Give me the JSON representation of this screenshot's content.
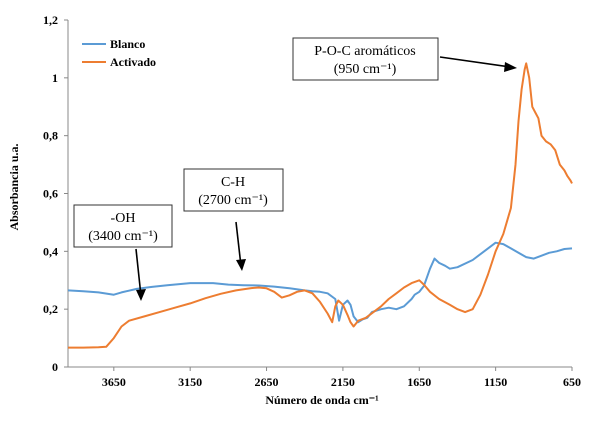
{
  "chart_data": {
    "type": "line",
    "xlabel": "Número de onda cm⁻¹",
    "ylabel": "Absorbancia u.a.",
    "xlim": [
      3950,
      650
    ],
    "ylim": [
      0,
      1.2
    ],
    "x_reversed": true,
    "x_ticks": [
      {
        "value": 3650,
        "label": "3650"
      },
      {
        "value": 3150,
        "label": "3150"
      },
      {
        "value": 2650,
        "label": "2650"
      },
      {
        "value": 2150,
        "label": "2150"
      },
      {
        "value": 1650,
        "label": "1650"
      },
      {
        "value": 1150,
        "label": "1150"
      },
      {
        "value": 650,
        "label": "650"
      }
    ],
    "y_ticks": [
      {
        "value": 0,
        "label": "0"
      },
      {
        "value": 0.2,
        "label": "0,2"
      },
      {
        "value": 0.4,
        "label": "0,4"
      },
      {
        "value": 0.6,
        "label": "0,6"
      },
      {
        "value": 0.8,
        "label": "0,8"
      },
      {
        "value": 1.0,
        "label": "1"
      },
      {
        "value": 1.2,
        "label": "1,2"
      }
    ],
    "grid": false,
    "legend_position": "top-left",
    "series": [
      {
        "name": "Blanco",
        "color": "#5b9bd5",
        "points": [
          [
            3950,
            0.265
          ],
          [
            3850,
            0.262
          ],
          [
            3750,
            0.258
          ],
          [
            3650,
            0.25
          ],
          [
            3600,
            0.258
          ],
          [
            3500,
            0.27
          ],
          [
            3400,
            0.277
          ],
          [
            3300,
            0.283
          ],
          [
            3150,
            0.29
          ],
          [
            3000,
            0.29
          ],
          [
            2900,
            0.285
          ],
          [
            2800,
            0.283
          ],
          [
            2700,
            0.282
          ],
          [
            2600,
            0.278
          ],
          [
            2500,
            0.272
          ],
          [
            2400,
            0.265
          ],
          [
            2350,
            0.262
          ],
          [
            2300,
            0.26
          ],
          [
            2250,
            0.255
          ],
          [
            2200,
            0.235
          ],
          [
            2175,
            0.16
          ],
          [
            2150,
            0.215
          ],
          [
            2120,
            0.23
          ],
          [
            2100,
            0.215
          ],
          [
            2080,
            0.175
          ],
          [
            2050,
            0.155
          ],
          [
            2020,
            0.165
          ],
          [
            1990,
            0.17
          ],
          [
            1960,
            0.19
          ],
          [
            1900,
            0.2
          ],
          [
            1850,
            0.205
          ],
          [
            1800,
            0.2
          ],
          [
            1750,
            0.21
          ],
          [
            1700,
            0.235
          ],
          [
            1680,
            0.25
          ],
          [
            1650,
            0.26
          ],
          [
            1620,
            0.28
          ],
          [
            1580,
            0.34
          ],
          [
            1550,
            0.375
          ],
          [
            1520,
            0.36
          ],
          [
            1480,
            0.35
          ],
          [
            1450,
            0.34
          ],
          [
            1400,
            0.345
          ],
          [
            1300,
            0.37
          ],
          [
            1200,
            0.41
          ],
          [
            1150,
            0.43
          ],
          [
            1100,
            0.425
          ],
          [
            1050,
            0.41
          ],
          [
            1000,
            0.395
          ],
          [
            950,
            0.38
          ],
          [
            900,
            0.375
          ],
          [
            850,
            0.385
          ],
          [
            800,
            0.395
          ],
          [
            750,
            0.4
          ],
          [
            700,
            0.408
          ],
          [
            650,
            0.41
          ]
        ]
      },
      {
        "name": "Activado",
        "color": "#ed7d31",
        "points": [
          [
            3950,
            0.067
          ],
          [
            3850,
            0.067
          ],
          [
            3750,
            0.068
          ],
          [
            3700,
            0.07
          ],
          [
            3650,
            0.1
          ],
          [
            3600,
            0.14
          ],
          [
            3550,
            0.16
          ],
          [
            3450,
            0.175
          ],
          [
            3350,
            0.19
          ],
          [
            3250,
            0.205
          ],
          [
            3150,
            0.22
          ],
          [
            3050,
            0.238
          ],
          [
            2950,
            0.253
          ],
          [
            2850,
            0.265
          ],
          [
            2750,
            0.273
          ],
          [
            2700,
            0.275
          ],
          [
            2650,
            0.272
          ],
          [
            2600,
            0.26
          ],
          [
            2550,
            0.24
          ],
          [
            2500,
            0.248
          ],
          [
            2450,
            0.26
          ],
          [
            2400,
            0.265
          ],
          [
            2350,
            0.255
          ],
          [
            2300,
            0.225
          ],
          [
            2250,
            0.185
          ],
          [
            2220,
            0.155
          ],
          [
            2200,
            0.21
          ],
          [
            2180,
            0.23
          ],
          [
            2150,
            0.215
          ],
          [
            2120,
            0.18
          ],
          [
            2100,
            0.155
          ],
          [
            2080,
            0.14
          ],
          [
            2050,
            0.16
          ],
          [
            2000,
            0.17
          ],
          [
            1950,
            0.19
          ],
          [
            1900,
            0.21
          ],
          [
            1850,
            0.235
          ],
          [
            1800,
            0.255
          ],
          [
            1750,
            0.275
          ],
          [
            1700,
            0.29
          ],
          [
            1650,
            0.3
          ],
          [
            1620,
            0.285
          ],
          [
            1580,
            0.26
          ],
          [
            1520,
            0.235
          ],
          [
            1450,
            0.215
          ],
          [
            1400,
            0.2
          ],
          [
            1350,
            0.19
          ],
          [
            1300,
            0.2
          ],
          [
            1250,
            0.25
          ],
          [
            1200,
            0.32
          ],
          [
            1150,
            0.4
          ],
          [
            1100,
            0.46
          ],
          [
            1050,
            0.55
          ],
          [
            1020,
            0.7
          ],
          [
            1000,
            0.85
          ],
          [
            980,
            0.96
          ],
          [
            960,
            1.03
          ],
          [
            950,
            1.05
          ],
          [
            930,
            1.0
          ],
          [
            910,
            0.9
          ],
          [
            890,
            0.88
          ],
          [
            870,
            0.86
          ],
          [
            850,
            0.8
          ],
          [
            820,
            0.78
          ],
          [
            790,
            0.77
          ],
          [
            760,
            0.75
          ],
          [
            730,
            0.7
          ],
          [
            700,
            0.68
          ],
          [
            680,
            0.66
          ],
          [
            660,
            0.645
          ],
          [
            650,
            0.635
          ]
        ]
      }
    ],
    "annotations": [
      {
        "label": "-OH",
        "sub": "(3400 cm⁻¹)"
      },
      {
        "label": "C-H",
        "sub": "(2700 cm⁻¹)"
      },
      {
        "label": "P-O-C aromáticos",
        "sub": "(950 cm⁻¹)"
      }
    ]
  }
}
